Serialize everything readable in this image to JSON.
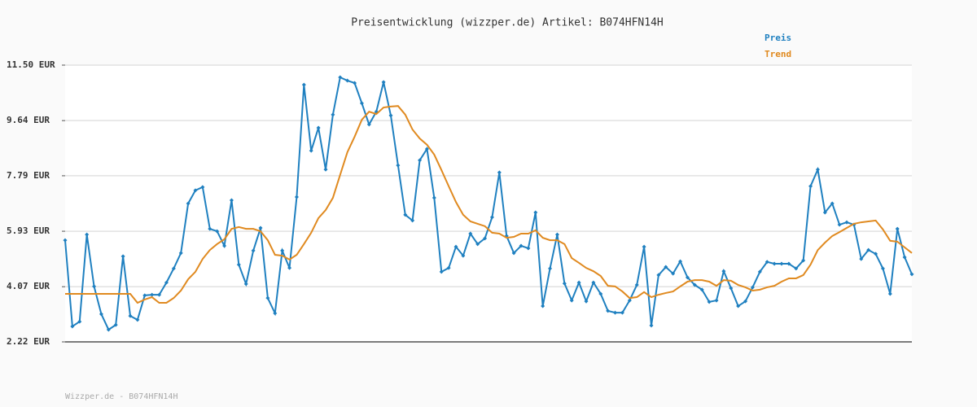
{
  "chart_data": {
    "type": "line",
    "title": "Preisentwicklung (wizzper.de) Artikel: B074HFN14H",
    "footer": "Wizzper.de - B074HFN14H",
    "ylim": [
      2.22,
      11.5
    ],
    "yticks": [
      {
        "value": 2.22,
        "label": "2.22 EUR"
      },
      {
        "value": 4.07,
        "label": "4.07 EUR"
      },
      {
        "value": 5.93,
        "label": "5.93 EUR"
      },
      {
        "value": 7.79,
        "label": "7.79 EUR"
      },
      {
        "value": 9.64,
        "label": "9.64 EUR"
      },
      {
        "value": 11.5,
        "label": "11.50 EUR"
      }
    ],
    "grid": true,
    "legend": "top-right",
    "series": [
      {
        "name": "Preis",
        "color": "#1f80c0",
        "markers": true,
        "values": [
          5.63,
          2.74,
          2.9,
          5.82,
          4.08,
          3.15,
          2.63,
          2.79,
          5.09,
          3.09,
          2.96,
          3.78,
          3.8,
          3.8,
          4.21,
          4.68,
          5.2,
          6.86,
          7.3,
          7.41,
          6.01,
          5.93,
          5.44,
          6.97,
          4.81,
          4.16,
          5.28,
          6.04,
          3.69,
          3.18,
          5.28,
          4.7,
          7.08,
          10.84,
          8.63,
          9.4,
          8.0,
          9.84,
          11.09,
          10.98,
          10.9,
          10.22,
          9.51,
          9.94,
          10.93,
          9.81,
          8.14,
          6.48,
          6.29,
          8.31,
          8.69,
          7.05,
          4.57,
          4.7,
          5.41,
          5.11,
          5.85,
          5.5,
          5.69,
          6.4,
          7.9,
          5.77,
          5.2,
          5.44,
          5.36,
          6.56,
          3.42,
          4.68,
          5.82,
          4.18,
          3.61,
          4.21,
          3.58,
          4.21,
          3.83,
          3.26,
          3.2,
          3.2,
          3.61,
          4.13,
          5.41,
          2.77,
          4.46,
          4.73,
          4.51,
          4.92,
          4.38,
          4.13,
          3.97,
          3.56,
          3.61,
          4.59,
          4.02,
          3.42,
          3.58,
          4.05,
          4.57,
          4.9,
          4.84,
          4.84,
          4.84,
          4.68,
          4.95,
          7.44,
          8.0,
          6.56,
          6.86,
          6.15,
          6.23,
          6.15,
          5.0,
          5.3,
          5.17,
          4.68,
          3.83,
          6.01,
          5.06,
          4.49
        ]
      },
      {
        "name": "Trend",
        "color": "#e08a20",
        "markers": false,
        "values": [
          3.83,
          3.83,
          3.83,
          3.83,
          3.83,
          3.83,
          3.83,
          3.83,
          3.83,
          3.83,
          3.53,
          3.64,
          3.72,
          3.53,
          3.53,
          3.69,
          3.94,
          4.32,
          4.57,
          5.0,
          5.3,
          5.5,
          5.66,
          6.01,
          6.07,
          6.01,
          6.01,
          5.93,
          5.63,
          5.14,
          5.11,
          4.98,
          5.14,
          5.5,
          5.88,
          6.37,
          6.64,
          7.05,
          7.82,
          8.58,
          9.1,
          9.67,
          9.94,
          9.86,
          10.08,
          10.11,
          10.13,
          9.84,
          9.34,
          9.04,
          8.83,
          8.5,
          7.98,
          7.44,
          6.91,
          6.48,
          6.26,
          6.18,
          6.1,
          5.88,
          5.85,
          5.71,
          5.74,
          5.85,
          5.85,
          5.96,
          5.71,
          5.63,
          5.63,
          5.5,
          5.03,
          4.87,
          4.7,
          4.59,
          4.43,
          4.1,
          4.08,
          3.91,
          3.69,
          3.72,
          3.89,
          3.72,
          3.8,
          3.86,
          3.91,
          4.08,
          4.24,
          4.29,
          4.29,
          4.24,
          4.1,
          4.29,
          4.27,
          4.13,
          4.05,
          3.94,
          3.97,
          4.05,
          4.1,
          4.24,
          4.35,
          4.35,
          4.46,
          4.81,
          5.3,
          5.55,
          5.77,
          5.9,
          6.04,
          6.18,
          6.23,
          6.26,
          6.29,
          5.99,
          5.61,
          5.58,
          5.39,
          5.2
        ]
      }
    ]
  }
}
